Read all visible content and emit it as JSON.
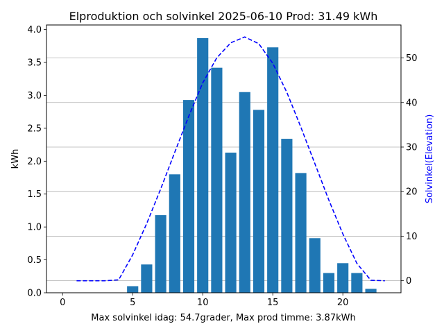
{
  "chart_data": {
    "type": "bar",
    "title": "Elproduktion och solvinkel 2025-06-10 Prod: 31.49 kWh",
    "xlabel": "Max solvinkel idag: 54.7grader, Max prod timme: 3.87kWh",
    "ylabel": "kWh",
    "y2label": "Solvinkel(Elevation)",
    "xlim": [
      -1.15,
      24.15
    ],
    "ylim": [
      0,
      4.07
    ],
    "y2lim": [
      -2.7,
      57.4
    ],
    "xticks": [
      "0",
      "5",
      "10",
      "15",
      "20"
    ],
    "xtick_values": [
      0,
      5,
      10,
      15,
      20
    ],
    "yticks": [
      "0.0",
      "0.5",
      "1.0",
      "1.5",
      "2.0",
      "2.5",
      "3.0",
      "3.5",
      "4.0"
    ],
    "ytick_values": [
      0,
      0.5,
      1.0,
      1.5,
      2.0,
      2.5,
      3.0,
      3.5,
      4.0
    ],
    "y2ticks": [
      "0",
      "10",
      "20",
      "30",
      "40",
      "50"
    ],
    "y2tick_values": [
      0,
      10,
      20,
      30,
      40,
      50
    ],
    "grid": "horizontal lines at right-axis ticks",
    "bar_color": "#1f77b4",
    "line_color": "#0000ff",
    "y2label_color": "#0000ff",
    "series": [
      {
        "axis": "left",
        "style": "bar",
        "x": [
          5,
          6,
          7,
          8,
          9,
          10,
          11,
          12,
          13,
          14,
          15,
          16,
          17,
          18,
          19,
          20,
          21,
          22
        ],
        "values": [
          0.1,
          0.43,
          1.18,
          1.8,
          2.93,
          3.87,
          3.42,
          2.13,
          3.05,
          2.78,
          3.73,
          2.34,
          1.82,
          0.83,
          0.3,
          0.45,
          0.3,
          0.06
        ]
      },
      {
        "axis": "right",
        "style": "dashed-line",
        "x": [
          1,
          2,
          3,
          4,
          5,
          6,
          7,
          8,
          9,
          10,
          11,
          12,
          13,
          14,
          15,
          16,
          17,
          18,
          19,
          20,
          21,
          22,
          23
        ],
        "values": [
          0,
          0,
          0,
          0.2,
          5.8,
          12.8,
          20.6,
          28.8,
          36.9,
          44.4,
          50.0,
          53.4,
          54.7,
          53.2,
          48.8,
          42.3,
          34.5,
          26.3,
          18.1,
          10.5,
          3.9,
          0.1,
          0
        ]
      }
    ]
  }
}
